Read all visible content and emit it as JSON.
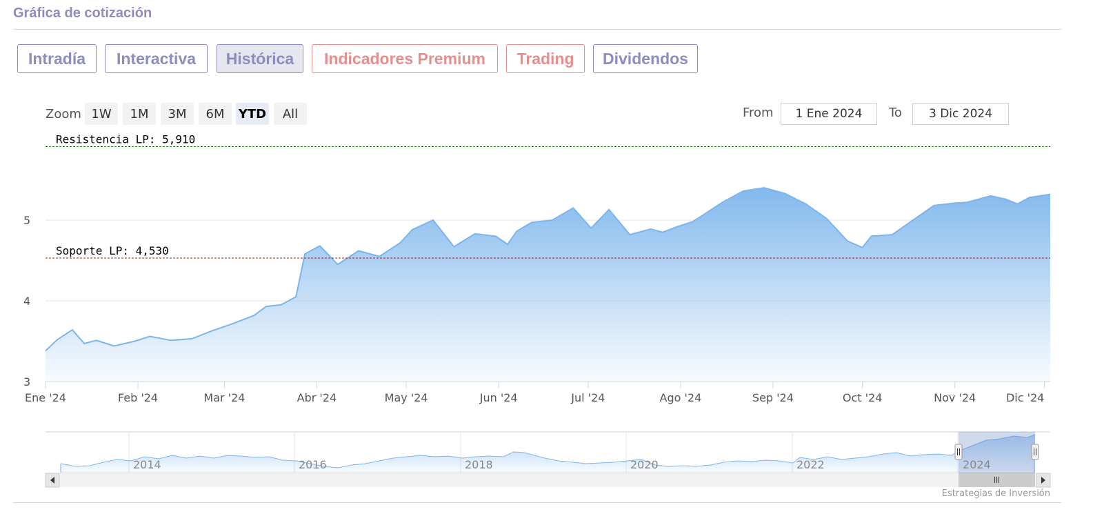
{
  "header": {
    "title": "Gráfica de cotización"
  },
  "tabs": [
    {
      "label": "Intradía",
      "active": false,
      "premium": false
    },
    {
      "label": "Interactiva",
      "active": false,
      "premium": false
    },
    {
      "label": "Histórica",
      "active": true,
      "premium": false
    },
    {
      "label": "Indicadores Premium",
      "active": false,
      "premium": true
    },
    {
      "label": "Trading",
      "active": false,
      "premium": true
    },
    {
      "label": "Dividendos",
      "active": false,
      "premium": false
    }
  ],
  "zoom": {
    "label": "Zoom",
    "buttons": [
      {
        "label": "1W",
        "active": false
      },
      {
        "label": "1M",
        "active": false
      },
      {
        "label": "3M",
        "active": false
      },
      {
        "label": "6M",
        "active": false
      },
      {
        "label": "YTD",
        "active": true
      },
      {
        "label": "All",
        "active": false
      }
    ]
  },
  "range": {
    "from_label": "From",
    "from_value": "1 Ene 2024",
    "to_label": "To",
    "to_value": "3 Dic 2024"
  },
  "credit": "Estrategias de Inversión",
  "colors": {
    "accent": "#8e8bbf",
    "premium": "#e58e8e",
    "series": "#7cb5ec",
    "resistance": "#1a8a1a",
    "support": "#b01818"
  },
  "chart_data": {
    "type": "area",
    "y_ticks": [
      "3",
      "4",
      "5"
    ],
    "ylim": [
      3,
      6
    ],
    "x_ticks": [
      "Ene '24",
      "Feb '24",
      "Mar '24",
      "Abr '24",
      "May '24",
      "Jun '24",
      "Jul '24",
      "Ago '24",
      "Sep '24",
      "Oct '24",
      "Nov '24",
      "Dic '24"
    ],
    "annotations": [
      {
        "label": "Resistencia LP: 5,910",
        "value": 5.91
      },
      {
        "label": "Soporte LP: 4,530",
        "value": 4.53
      }
    ],
    "series": [
      {
        "x": [
          "2024-01-01",
          "2024-01-05",
          "2024-01-10",
          "2024-01-14",
          "2024-01-18",
          "2024-01-24",
          "2024-01-31",
          "2024-02-05",
          "2024-02-12",
          "2024-02-19",
          "2024-02-26",
          "2024-03-04",
          "2024-03-11",
          "2024-03-15",
          "2024-03-20",
          "2024-03-25",
          "2024-03-28",
          "2024-04-02",
          "2024-04-08",
          "2024-04-15",
          "2024-04-22",
          "2024-04-29",
          "2024-05-03",
          "2024-05-10",
          "2024-05-17",
          "2024-05-24",
          "2024-05-31",
          "2024-06-04",
          "2024-06-07",
          "2024-06-12",
          "2024-06-19",
          "2024-06-26",
          "2024-07-02",
          "2024-07-08",
          "2024-07-15",
          "2024-07-22",
          "2024-07-26",
          "2024-07-31",
          "2024-08-05",
          "2024-08-08",
          "2024-08-15",
          "2024-08-22",
          "2024-08-29",
          "2024-09-05",
          "2024-09-12",
          "2024-09-19",
          "2024-09-26",
          "2024-10-01",
          "2024-10-04",
          "2024-10-11",
          "2024-10-18",
          "2024-10-25",
          "2024-11-01",
          "2024-11-05",
          "2024-11-08",
          "2024-11-13",
          "2024-11-18",
          "2024-11-22",
          "2024-11-26",
          "2024-12-03"
        ],
        "y": [
          3.38,
          3.52,
          3.64,
          3.47,
          3.51,
          3.44,
          3.5,
          3.56,
          3.51,
          3.53,
          3.63,
          3.72,
          3.82,
          3.93,
          3.95,
          4.05,
          4.58,
          4.68,
          4.45,
          4.62,
          4.55,
          4.72,
          4.88,
          5.0,
          4.67,
          4.83,
          4.8,
          4.7,
          4.86,
          4.97,
          5.0,
          5.15,
          4.9,
          5.13,
          4.82,
          4.89,
          4.85,
          4.92,
          4.98,
          5.05,
          5.22,
          5.36,
          5.4,
          5.33,
          5.2,
          5.02,
          4.74,
          4.66,
          4.8,
          4.82,
          5.0,
          5.18,
          5.21,
          5.22,
          5.25,
          5.3,
          5.26,
          5.2,
          5.28,
          5.32
        ]
      }
    ]
  }
}
